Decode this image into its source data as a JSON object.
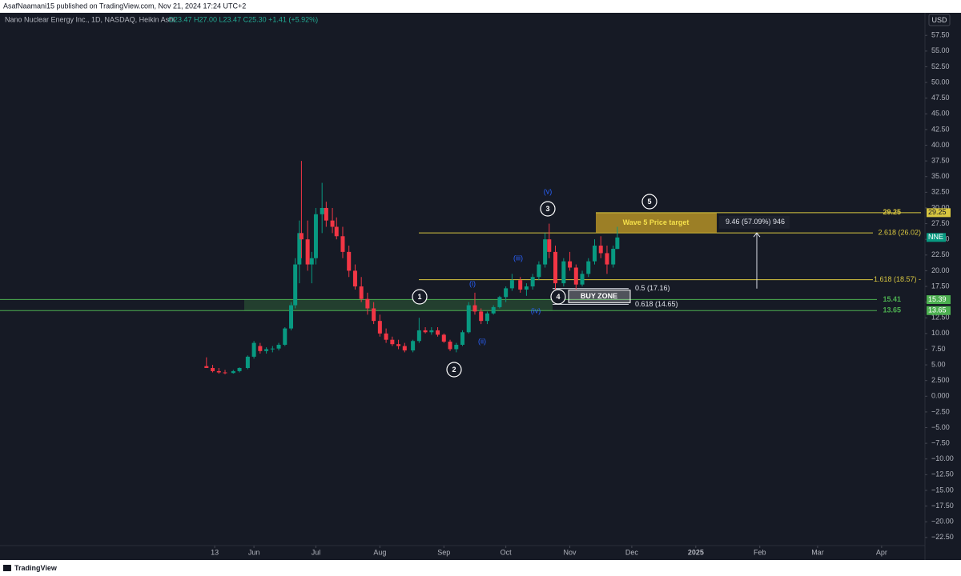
{
  "header": "AsafNaamani15 published on TradingView.com, Nov 21, 2024 17:24 UTC+2",
  "footer": "TradingView",
  "chart_data": {
    "type": "candlestick",
    "symbol": "Nano Nuclear Energy Inc., 1D, NASDAQ, Heikin Ashi",
    "ohlc_text": "O23.47 H27.00 L23.47 C25.30 +1.41 (+5.92%)",
    "currency": "USD",
    "ticker": "NNE",
    "up_color": "#089981",
    "down_color": "#f23645",
    "x": [
      8,
      11,
      14,
      17,
      21,
      24,
      28,
      31,
      34,
      37,
      40,
      43,
      46,
      49,
      51,
      53,
      54,
      57,
      59,
      61,
      64,
      66,
      69,
      71,
      74,
      77,
      80,
      83,
      86,
      89,
      92,
      95,
      98,
      101,
      104,
      108,
      111,
      114,
      117,
      120,
      123,
      126,
      129,
      132,
      135,
      138,
      141,
      144,
      147,
      150,
      153,
      156,
      160,
      163,
      166,
      169,
      172,
      174,
      177,
      181,
      184,
      187,
      190,
      193,
      196,
      199,
      202,
      205,
      207
    ],
    "open": [
      4.8,
      4.5,
      4.0,
      3.8,
      3.7,
      4.0,
      4.5,
      6.3,
      8.0,
      7.2,
      7.5,
      7.6,
      8.2,
      10.8,
      14.5,
      21,
      26,
      25,
      21,
      22,
      29,
      30,
      28,
      27,
      25.5,
      23,
      20,
      17.5,
      15.5,
      14,
      12,
      10,
      9,
      8.3,
      8,
      7.3,
      8.8,
      10.5,
      10.2,
      10.5,
      9.8,
      8.7,
      7.5,
      8.2,
      10.2,
      14.5,
      13.5,
      12,
      13.2,
      14.2,
      15.8,
      17.2,
      18.5,
      17,
      17.5,
      19,
      21,
      25,
      23,
      18,
      21.5,
      20.5,
      17.8,
      19.5,
      21.5,
      24,
      22.8,
      21,
      23.47
    ],
    "high": [
      6.2,
      5,
      4.5,
      4.2,
      4.2,
      4.6,
      6.5,
      8.8,
      8.5,
      7.8,
      8,
      8.5,
      11,
      15,
      22,
      28,
      37.5,
      28,
      23,
      30,
      34,
      31,
      30,
      28.5,
      27,
      24,
      21,
      19,
      16.5,
      15,
      13,
      10.8,
      9.5,
      9,
      8.5,
      9,
      12.5,
      11,
      11,
      11,
      10,
      9,
      8.5,
      10.5,
      15,
      16.5,
      14,
      13.5,
      14.5,
      16,
      17.5,
      19.5,
      19,
      18,
      19.5,
      21.5,
      26,
      27.5,
      24,
      22,
      23,
      21,
      20,
      22,
      25,
      25.5,
      24,
      24,
      27
    ],
    "low": [
      4.5,
      3.8,
      3.6,
      3.5,
      3.6,
      3.8,
      4.3,
      6,
      6.8,
      6.8,
      7,
      7.3,
      8,
      10.5,
      14,
      18,
      22,
      20,
      18,
      21,
      26,
      27,
      26,
      25,
      22,
      19,
      17,
      15,
      13,
      11.5,
      9.5,
      8.5,
      8,
      7.5,
      7,
      7,
      8.5,
      10,
      9.8,
      9.5,
      8.5,
      7.2,
      7,
      8,
      10,
      13,
      11.5,
      11.5,
      13,
      14,
      15,
      16.8,
      16.5,
      16,
      17,
      18.5,
      20.5,
      22,
      17,
      17.5,
      20,
      17,
      17.5,
      19,
      21,
      22,
      19.5,
      20.5,
      23.47
    ],
    "close": [
      4.5,
      4.0,
      3.8,
      3.7,
      4.0,
      4.5,
      6.3,
      8.5,
      7.2,
      7.5,
      7.6,
      8.2,
      10.8,
      14.5,
      21,
      26,
      25,
      21,
      22,
      29,
      30,
      28,
      27,
      25.5,
      23,
      20,
      17.5,
      15.5,
      14,
      12,
      10,
      9,
      8.3,
      8,
      7.3,
      8.8,
      10.5,
      10.2,
      10.5,
      9.8,
      8.7,
      7.5,
      8.2,
      10.2,
      14.5,
      13.5,
      12,
      13.2,
      14.2,
      15.8,
      17.2,
      18.5,
      17,
      17.5,
      19,
      21,
      25,
      23,
      18,
      21.5,
      20.5,
      17.8,
      19.5,
      21.5,
      24,
      22.8,
      21,
      23.5,
      25.3
    ],
    "xlim": [
      -92,
      356
    ],
    "ylim": [
      -23.8,
      61.1
    ],
    "xticks": [
      {
        "value": 12,
        "label": "13"
      },
      {
        "value": 31,
        "label": "Jun"
      },
      {
        "value": 61,
        "label": "Jul"
      },
      {
        "value": 92,
        "label": "Aug"
      },
      {
        "value": 123,
        "label": "Sep"
      },
      {
        "value": 153,
        "label": "Oct"
      },
      {
        "value": 184,
        "label": "Nov"
      },
      {
        "value": 214,
        "label": "Dec"
      },
      {
        "value": 245,
        "label": "2025"
      },
      {
        "value": 276,
        "label": "Feb"
      },
      {
        "value": 304,
        "label": "Mar"
      },
      {
        "value": 335,
        "label": "Apr"
      }
    ],
    "yticks": [
      {
        "value": 57.5,
        "label": "57.50"
      },
      {
        "value": 55,
        "label": "55.00"
      },
      {
        "value": 52.5,
        "label": "52.50"
      },
      {
        "value": 50,
        "label": "50.00"
      },
      {
        "value": 47.5,
        "label": "47.50"
      },
      {
        "value": 45,
        "label": "45.00"
      },
      {
        "value": 42.5,
        "label": "42.50"
      },
      {
        "value": 40,
        "label": "40.00"
      },
      {
        "value": 37.5,
        "label": "37.50"
      },
      {
        "value": 35,
        "label": "35.00"
      },
      {
        "value": 32.5,
        "label": "32.50"
      },
      {
        "value": 30,
        "label": "30.00"
      },
      {
        "value": 27.5,
        "label": "27.50"
      },
      {
        "value": 25,
        "label": "25.00"
      },
      {
        "value": 22.5,
        "label": "22.50"
      },
      {
        "value": 20,
        "label": "20.00"
      },
      {
        "value": 17.5,
        "label": "17.50"
      },
      {
        "value": 15,
        "label": "15.00"
      },
      {
        "value": 12.5,
        "label": "12.50"
      },
      {
        "value": 10,
        "label": "10.00"
      },
      {
        "value": 7.5,
        "label": "7.50"
      },
      {
        "value": 5,
        "label": "5.00"
      },
      {
        "value": 2.5,
        "label": "2.500"
      },
      {
        "value": 0,
        "label": "0.000"
      },
      {
        "value": -2.5,
        "label": "−2.50"
      },
      {
        "value": -5,
        "label": "−5.00"
      },
      {
        "value": -7.5,
        "label": "−7.50"
      },
      {
        "value": -10,
        "label": "−10.00"
      },
      {
        "value": -12.5,
        "label": "−12.50"
      },
      {
        "value": -15,
        "label": "−15.00"
      },
      {
        "value": -17.5,
        "label": "−17.50"
      },
      {
        "value": -20,
        "label": "−20.00"
      },
      {
        "value": -22.5,
        "label": "−22.50"
      }
    ],
    "fib_levels": [
      {
        "value": 26.02,
        "label": "2.618 (26.02)",
        "color": "#d8c640"
      },
      {
        "value": 18.57,
        "label": "1.618 (18.57) -",
        "color": "#d8c640"
      },
      {
        "value": 17.16,
        "label": "0.5 (17.16)",
        "color": "#e0e3eb"
      },
      {
        "value": 14.65,
        "label": "0.618 (14.65)",
        "color": "#e0e3eb"
      }
    ],
    "price_target": {
      "value": 29.25,
      "text": "Wave 5 Price target",
      "measure": "9.46 (57.09%) 946",
      "color": "#d8c640"
    },
    "support_zone": {
      "top": 15.41,
      "bottom": 13.65,
      "axis_top": 15.39,
      "color": "#4caf50"
    },
    "buy_zone": "BUY ZONE",
    "wave_labels": [
      "1",
      "2",
      "3",
      "4",
      "5"
    ],
    "subwave_labels": [
      "(i)",
      "(ii)",
      "(iii)",
      "(iv)",
      "(v)"
    ]
  }
}
